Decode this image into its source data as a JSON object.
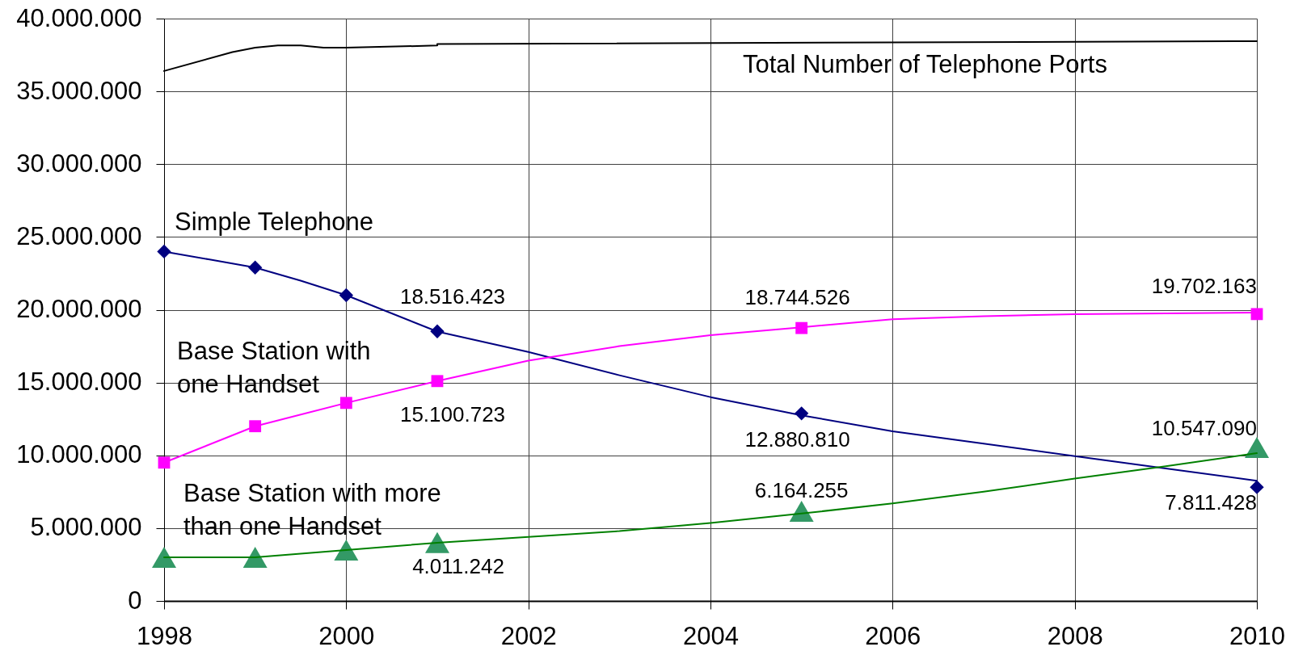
{
  "chart_data": {
    "type": "line",
    "xlim": [
      1998,
      2010
    ],
    "xticks": [
      1998,
      2000,
      2002,
      2004,
      2006,
      2008,
      2010
    ],
    "ylim": [
      0,
      40000000
    ],
    "yticks": [
      0,
      {
        "value": 5000000,
        "label": "5.000.000"
      },
      {
        "value": 10000000,
        "label": "10.000.000"
      },
      {
        "value": 15000000,
        "label": "15.000.000"
      },
      {
        "value": 20000000,
        "label": "20.000.000"
      },
      {
        "value": 25000000,
        "label": "25.000.000"
      },
      {
        "value": 30000000,
        "label": "30.000.000"
      },
      {
        "value": 35000000,
        "label": "35.000.000"
      },
      {
        "value": 40000000,
        "label": "40.000.000"
      }
    ],
    "grid": true,
    "series": [
      {
        "name": "Simple Telephone",
        "color": "#000080",
        "x": [
          1998,
          1998.5,
          1999,
          1999.5,
          2000,
          2001,
          2002,
          2003,
          2004,
          2005,
          2006,
          2007,
          2008,
          2009,
          2010
        ],
        "values": [
          24000000,
          23450000,
          22900000,
          22000000,
          21000000,
          18500000,
          17100000,
          15500000,
          14000000,
          12750000,
          11650000,
          10800000,
          9950000,
          9100000,
          8250000
        ]
      },
      {
        "type": "scatter",
        "color": "#000080",
        "marker": "diamond",
        "x": [
          1998,
          1999,
          2000,
          2001,
          2005,
          2010
        ],
        "values": [
          24000000,
          22900000,
          21000000,
          18516423,
          12880810,
          7811428
        ],
        "value_labels": [
          null,
          null,
          null,
          "18.516.423",
          "12.880.810",
          "7.811.428"
        ]
      },
      {
        "name": "Base Station with one Handset",
        "color": "#ff00ff",
        "x": [
          1998,
          1999,
          2000,
          2001,
          2002,
          2003,
          2004,
          2005,
          2006,
          2007,
          2008,
          2009,
          2010
        ],
        "values": [
          9500000,
          12000000,
          13600000,
          15100000,
          16500000,
          17500000,
          18250000,
          18800000,
          19350000,
          19550000,
          19700000,
          19750000,
          19800000
        ]
      },
      {
        "type": "scatter",
        "color": "#ff00ff",
        "marker": "square",
        "x": [
          1998,
          1999,
          2000,
          2001,
          2005,
          2010
        ],
        "values": [
          9500000,
          12000000,
          13600000,
          15100723,
          18744526,
          19702163
        ],
        "value_labels": [
          null,
          null,
          null,
          "15.100.723",
          "18.744.526",
          "19.702.163"
        ]
      },
      {
        "name": "Base Station with more than one Handset",
        "color": "#008000",
        "x": [
          1998,
          1999,
          2000,
          2001,
          2002,
          2003,
          2004,
          2005,
          2006,
          2007,
          2008,
          2009,
          2010
        ],
        "values": [
          3000000,
          3000000,
          3500000,
          4000000,
          4400000,
          4800000,
          5350000,
          6000000,
          6700000,
          7500000,
          8400000,
          9250000,
          10150000
        ]
      },
      {
        "type": "scatter",
        "color": "#339966",
        "marker": "triangle",
        "x": [
          1998,
          1999,
          2000,
          2001,
          2005,
          2010
        ],
        "values": [
          3000000,
          3000000,
          3500000,
          4011242,
          6164255,
          10547090
        ],
        "value_labels": [
          null,
          null,
          null,
          "4.011.242",
          "6.164.255",
          "10.547.090"
        ]
      },
      {
        "name": "Total Number of Telephone Ports",
        "color": "#000000",
        "x": [
          1998,
          1998.75,
          1999,
          1999.25,
          1999.5,
          1999.75,
          2000,
          2001,
          2001,
          2010
        ],
        "values": [
          36400000,
          37700000,
          38000000,
          38150000,
          38150000,
          38000000,
          38000000,
          38150000,
          38250000,
          38450000
        ]
      }
    ]
  }
}
